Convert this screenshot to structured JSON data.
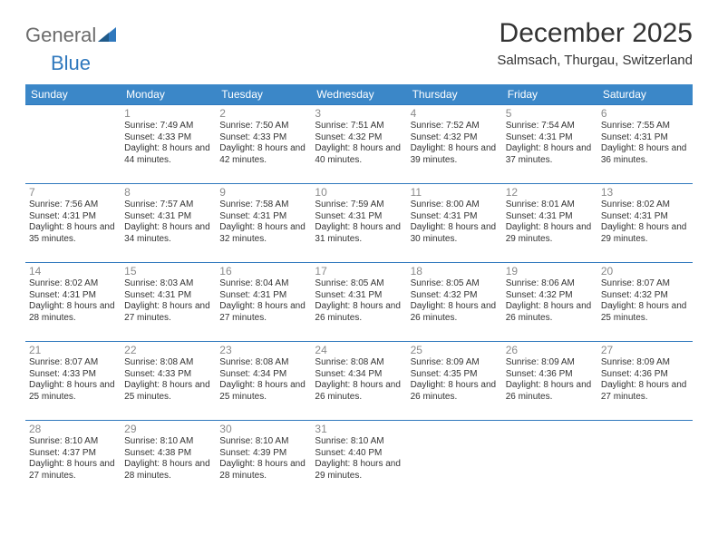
{
  "brand": {
    "part1": "General",
    "part2": "Blue"
  },
  "title": "December 2025",
  "location": "Salmsach, Thurgau, Switzerland",
  "colors": {
    "header_bg": "#3b87c8",
    "header_text": "#ffffff",
    "rule": "#2f78bd",
    "brand_gray": "#6b6b6b",
    "brand_blue": "#2f78bd",
    "text": "#333333",
    "daynum": "#8a8a8a",
    "background": "#ffffff"
  },
  "typography": {
    "title_fontsize": 30,
    "location_fontsize": 15,
    "header_fontsize": 12,
    "daynum_fontsize": 12,
    "cell_fontsize": 10
  },
  "days_of_week": [
    "Sunday",
    "Monday",
    "Tuesday",
    "Wednesday",
    "Thursday",
    "Friday",
    "Saturday"
  ],
  "weeks": [
    [
      null,
      {
        "n": "1",
        "sr": "Sunrise: 7:49 AM",
        "ss": "Sunset: 4:33 PM",
        "dl": "Daylight: 8 hours and 44 minutes."
      },
      {
        "n": "2",
        "sr": "Sunrise: 7:50 AM",
        "ss": "Sunset: 4:33 PM",
        "dl": "Daylight: 8 hours and 42 minutes."
      },
      {
        "n": "3",
        "sr": "Sunrise: 7:51 AM",
        "ss": "Sunset: 4:32 PM",
        "dl": "Daylight: 8 hours and 40 minutes."
      },
      {
        "n": "4",
        "sr": "Sunrise: 7:52 AM",
        "ss": "Sunset: 4:32 PM",
        "dl": "Daylight: 8 hours and 39 minutes."
      },
      {
        "n": "5",
        "sr": "Sunrise: 7:54 AM",
        "ss": "Sunset: 4:31 PM",
        "dl": "Daylight: 8 hours and 37 minutes."
      },
      {
        "n": "6",
        "sr": "Sunrise: 7:55 AM",
        "ss": "Sunset: 4:31 PM",
        "dl": "Daylight: 8 hours and 36 minutes."
      }
    ],
    [
      {
        "n": "7",
        "sr": "Sunrise: 7:56 AM",
        "ss": "Sunset: 4:31 PM",
        "dl": "Daylight: 8 hours and 35 minutes."
      },
      {
        "n": "8",
        "sr": "Sunrise: 7:57 AM",
        "ss": "Sunset: 4:31 PM",
        "dl": "Daylight: 8 hours and 34 minutes."
      },
      {
        "n": "9",
        "sr": "Sunrise: 7:58 AM",
        "ss": "Sunset: 4:31 PM",
        "dl": "Daylight: 8 hours and 32 minutes."
      },
      {
        "n": "10",
        "sr": "Sunrise: 7:59 AM",
        "ss": "Sunset: 4:31 PM",
        "dl": "Daylight: 8 hours and 31 minutes."
      },
      {
        "n": "11",
        "sr": "Sunrise: 8:00 AM",
        "ss": "Sunset: 4:31 PM",
        "dl": "Daylight: 8 hours and 30 minutes."
      },
      {
        "n": "12",
        "sr": "Sunrise: 8:01 AM",
        "ss": "Sunset: 4:31 PM",
        "dl": "Daylight: 8 hours and 29 minutes."
      },
      {
        "n": "13",
        "sr": "Sunrise: 8:02 AM",
        "ss": "Sunset: 4:31 PM",
        "dl": "Daylight: 8 hours and 29 minutes."
      }
    ],
    [
      {
        "n": "14",
        "sr": "Sunrise: 8:02 AM",
        "ss": "Sunset: 4:31 PM",
        "dl": "Daylight: 8 hours and 28 minutes."
      },
      {
        "n": "15",
        "sr": "Sunrise: 8:03 AM",
        "ss": "Sunset: 4:31 PM",
        "dl": "Daylight: 8 hours and 27 minutes."
      },
      {
        "n": "16",
        "sr": "Sunrise: 8:04 AM",
        "ss": "Sunset: 4:31 PM",
        "dl": "Daylight: 8 hours and 27 minutes."
      },
      {
        "n": "17",
        "sr": "Sunrise: 8:05 AM",
        "ss": "Sunset: 4:31 PM",
        "dl": "Daylight: 8 hours and 26 minutes."
      },
      {
        "n": "18",
        "sr": "Sunrise: 8:05 AM",
        "ss": "Sunset: 4:32 PM",
        "dl": "Daylight: 8 hours and 26 minutes."
      },
      {
        "n": "19",
        "sr": "Sunrise: 8:06 AM",
        "ss": "Sunset: 4:32 PM",
        "dl": "Daylight: 8 hours and 26 minutes."
      },
      {
        "n": "20",
        "sr": "Sunrise: 8:07 AM",
        "ss": "Sunset: 4:32 PM",
        "dl": "Daylight: 8 hours and 25 minutes."
      }
    ],
    [
      {
        "n": "21",
        "sr": "Sunrise: 8:07 AM",
        "ss": "Sunset: 4:33 PM",
        "dl": "Daylight: 8 hours and 25 minutes."
      },
      {
        "n": "22",
        "sr": "Sunrise: 8:08 AM",
        "ss": "Sunset: 4:33 PM",
        "dl": "Daylight: 8 hours and 25 minutes."
      },
      {
        "n": "23",
        "sr": "Sunrise: 8:08 AM",
        "ss": "Sunset: 4:34 PM",
        "dl": "Daylight: 8 hours and 25 minutes."
      },
      {
        "n": "24",
        "sr": "Sunrise: 8:08 AM",
        "ss": "Sunset: 4:34 PM",
        "dl": "Daylight: 8 hours and 26 minutes."
      },
      {
        "n": "25",
        "sr": "Sunrise: 8:09 AM",
        "ss": "Sunset: 4:35 PM",
        "dl": "Daylight: 8 hours and 26 minutes."
      },
      {
        "n": "26",
        "sr": "Sunrise: 8:09 AM",
        "ss": "Sunset: 4:36 PM",
        "dl": "Daylight: 8 hours and 26 minutes."
      },
      {
        "n": "27",
        "sr": "Sunrise: 8:09 AM",
        "ss": "Sunset: 4:36 PM",
        "dl": "Daylight: 8 hours and 27 minutes."
      }
    ],
    [
      {
        "n": "28",
        "sr": "Sunrise: 8:10 AM",
        "ss": "Sunset: 4:37 PM",
        "dl": "Daylight: 8 hours and 27 minutes."
      },
      {
        "n": "29",
        "sr": "Sunrise: 8:10 AM",
        "ss": "Sunset: 4:38 PM",
        "dl": "Daylight: 8 hours and 28 minutes."
      },
      {
        "n": "30",
        "sr": "Sunrise: 8:10 AM",
        "ss": "Sunset: 4:39 PM",
        "dl": "Daylight: 8 hours and 28 minutes."
      },
      {
        "n": "31",
        "sr": "Sunrise: 8:10 AM",
        "ss": "Sunset: 4:40 PM",
        "dl": "Daylight: 8 hours and 29 minutes."
      },
      null,
      null,
      null
    ]
  ]
}
